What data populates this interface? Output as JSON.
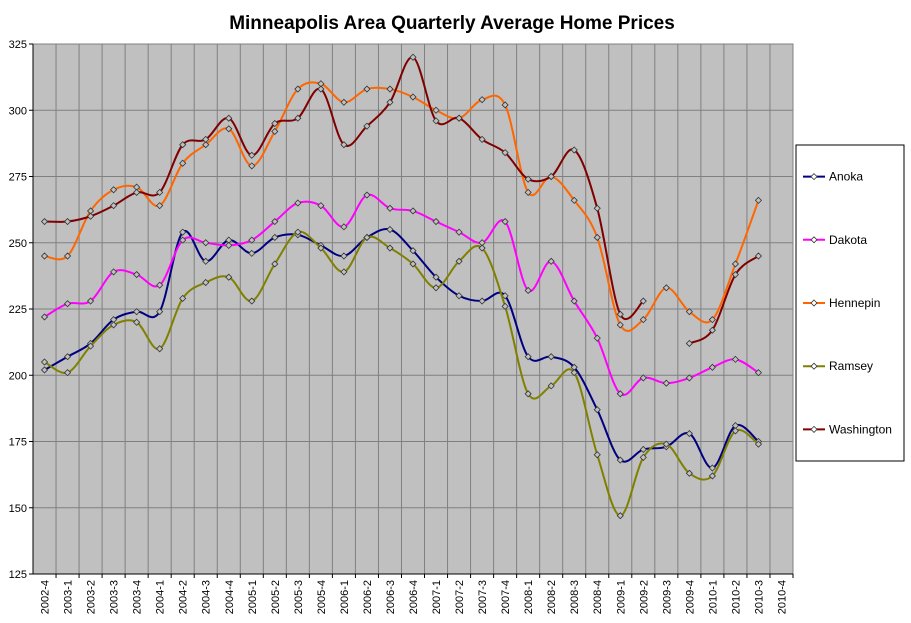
{
  "chart_data": {
    "type": "line",
    "title": "Minneapolis Area Quarterly Average Home Prices",
    "categories": [
      "2002-4",
      "2003-1",
      "2003-2",
      "2003-3",
      "2003-4",
      "2004-1",
      "2004-2",
      "2004-3",
      "2004-4",
      "2005-1",
      "2005-2",
      "2005-3",
      "2005-4",
      "2006-1",
      "2006-2",
      "2006-3",
      "2006-4",
      "2007-1",
      "2007-2",
      "2007-3",
      "2007-4",
      "2008-1",
      "2008-2",
      "2008-3",
      "2008-4",
      "2009-1",
      "2009-2",
      "2009-3",
      "2009-4",
      "2010-1",
      "2010-2",
      "2010-3",
      "2010-4"
    ],
    "series": [
      {
        "name": "Anoka",
        "color": "#000080",
        "values": [
          202,
          207,
          212,
          221,
          224,
          224,
          254,
          243,
          251,
          246,
          252,
          253,
          249,
          245,
          252,
          255,
          247,
          237,
          230,
          228,
          230,
          207,
          207,
          203,
          187,
          168,
          172,
          173,
          178,
          165,
          181,
          175,
          null
        ]
      },
      {
        "name": "Dakota",
        "color": "#ff00ff",
        "values": [
          222,
          227,
          228,
          239,
          238,
          234,
          251,
          250,
          249,
          251,
          258,
          265,
          264,
          256,
          268,
          263,
          262,
          258,
          254,
          250,
          258,
          232,
          243,
          228,
          214,
          193,
          199,
          197,
          199,
          203,
          206,
          201,
          null
        ]
      },
      {
        "name": "Hennepin",
        "color": "#ff6600",
        "values": [
          245,
          245,
          262,
          270,
          271,
          264,
          280,
          287,
          293,
          279,
          292,
          308,
          310,
          303,
          308,
          308,
          305,
          300,
          297,
          304,
          302,
          269,
          275,
          266,
          252,
          219,
          221,
          233,
          224,
          221,
          242,
          266,
          null
        ]
      },
      {
        "name": "Ramsey",
        "color": "#808000",
        "values": [
          205,
          201,
          211,
          219,
          220,
          210,
          229,
          235,
          237,
          228,
          242,
          254,
          248,
          239,
          252,
          248,
          242,
          233,
          243,
          248,
          226,
          193,
          196,
          201,
          170,
          147,
          169,
          174,
          163,
          162,
          179,
          174,
          null
        ]
      },
      {
        "name": "Washington",
        "color": "#800000",
        "values": [
          258,
          258,
          260,
          264,
          269,
          269,
          287,
          289,
          297,
          283,
          295,
          297,
          308,
          287,
          294,
          303,
          320,
          296,
          297,
          289,
          284,
          274,
          275,
          285,
          263,
          223,
          228,
          null,
          212,
          217,
          238,
          245,
          null
        ]
      }
    ],
    "ylim": [
      125,
      325
    ],
    "yticks": [
      125,
      150,
      175,
      200,
      225,
      250,
      275,
      300,
      325
    ],
    "grid": true,
    "legend": "right"
  }
}
